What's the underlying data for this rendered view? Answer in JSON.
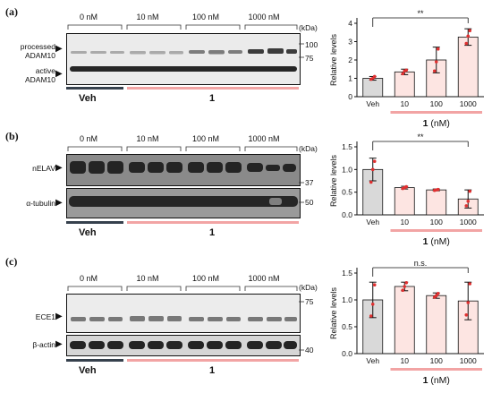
{
  "panels": [
    {
      "label": "(a)",
      "concentrations": [
        "0 nM",
        "10 nM",
        "100 nM",
        "1000 nM"
      ],
      "kda_label": "(kDa)",
      "bands": [
        {
          "name_lines": [
            "processed",
            "ADAM10"
          ]
        },
        {
          "name_lines": [
            "active",
            "ADAM10"
          ]
        }
      ],
      "mw_markers": [
        "100",
        "75"
      ],
      "group_labels": {
        "veh": "Veh",
        "treated": "1"
      },
      "chart_data": {
        "type": "bar",
        "categories": [
          "Veh",
          "10",
          "100",
          "1000"
        ],
        "values": [
          1.0,
          1.35,
          2.0,
          3.25
        ],
        "errors": [
          0.1,
          0.15,
          0.7,
          0.45
        ],
        "points": [
          [
            0.95,
            1.0,
            1.1
          ],
          [
            1.25,
            1.4,
            1.45
          ],
          [
            1.4,
            1.9,
            2.6
          ],
          [
            2.9,
            3.3,
            3.6
          ]
        ],
        "ylabel": "Relative levels",
        "xlabel_bold": "1",
        "xlabel_unit": "(nM)",
        "ylim": [
          0,
          4
        ],
        "yticks": [
          0,
          1,
          2,
          3,
          4
        ],
        "significance": {
          "text": "**",
          "from": 0,
          "to": 3
        },
        "colors": {
          "veh": "#d9d9d9",
          "treated": "#fde5e2",
          "points": "#e03030"
        }
      }
    },
    {
      "label": "(b)",
      "concentrations": [
        "0 nM",
        "10 nM",
        "100 nM",
        "1000 nM"
      ],
      "kda_label": "(kDa)",
      "bands": [
        {
          "name_lines": [
            "nELAV"
          ]
        },
        {
          "name_lines": [
            "α-tubulin"
          ]
        }
      ],
      "mw_markers": [
        "37",
        "50"
      ],
      "group_labels": {
        "veh": "Veh",
        "treated": "1"
      },
      "chart_data": {
        "type": "bar",
        "categories": [
          "Veh",
          "10",
          "100",
          "1000"
        ],
        "values": [
          1.0,
          0.6,
          0.55,
          0.35
        ],
        "errors": [
          0.25,
          0.03,
          0.02,
          0.2
        ],
        "points": [
          [
            0.72,
            1.0,
            1.18
          ],
          [
            0.58,
            0.6,
            0.62
          ],
          [
            0.54,
            0.55,
            0.56
          ],
          [
            0.2,
            0.3,
            0.52
          ]
        ],
        "ylabel": "Relative levels",
        "xlabel_bold": "1",
        "xlabel_unit": "(nM)",
        "ylim": [
          0,
          1.5
        ],
        "yticks": [
          0,
          0.5,
          1.0,
          1.5
        ],
        "significance": {
          "text": "**",
          "from": 0,
          "to": 3
        },
        "colors": {
          "veh": "#d9d9d9",
          "treated": "#fde5e2",
          "points": "#e03030"
        }
      }
    },
    {
      "label": "(c)",
      "concentrations": [
        "0 nM",
        "10 nM",
        "100 nM",
        "1000 nM"
      ],
      "kda_label": "(kDa)",
      "bands": [
        {
          "name_lines": [
            "ECE1"
          ]
        },
        {
          "name_lines": [
            "β-actin"
          ]
        }
      ],
      "mw_markers": [
        "75",
        "40"
      ],
      "group_labels": {
        "veh": "Veh",
        "treated": "1"
      },
      "chart_data": {
        "type": "bar",
        "categories": [
          "Veh",
          "10",
          "100",
          "1000"
        ],
        "values": [
          1.0,
          1.25,
          1.08,
          0.98
        ],
        "errors": [
          0.33,
          0.08,
          0.05,
          0.35
        ],
        "points": [
          [
            0.7,
            0.92,
            1.28
          ],
          [
            1.18,
            1.25,
            1.32
          ],
          [
            1.05,
            1.08,
            1.12
          ],
          [
            0.72,
            0.95,
            1.3
          ]
        ],
        "ylabel": "Relative levels",
        "xlabel_bold": "1",
        "xlabel_unit": "(nM)",
        "ylim": [
          0,
          1.5
        ],
        "yticks": [
          0,
          0.5,
          1.0,
          1.5
        ],
        "significance": {
          "text": "n.s.",
          "from": 0,
          "to": 3
        },
        "colors": {
          "veh": "#d9d9d9",
          "treated": "#fde5e2",
          "points": "#e03030"
        }
      }
    }
  ]
}
